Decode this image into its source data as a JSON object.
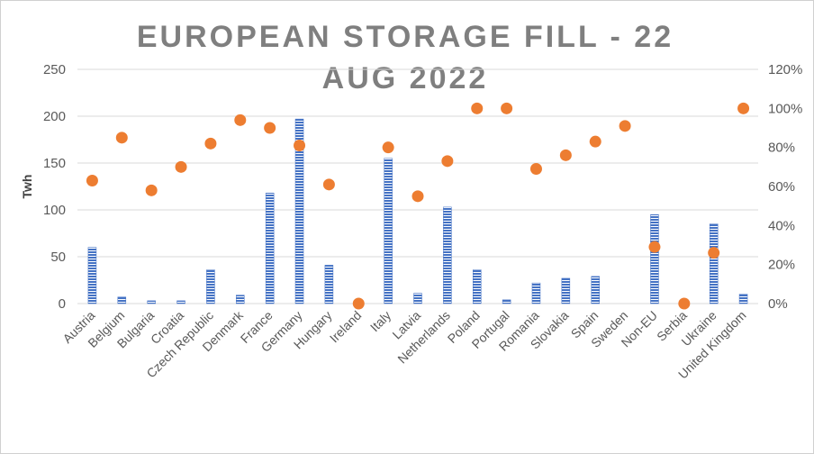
{
  "chart_data": {
    "type": "bar",
    "title": "EUROPEAN STORAGE FILL - 22 AUG 2022",
    "ylabel": "Twh",
    "y2label": "",
    "ylim": [
      0,
      250
    ],
    "y2lim": [
      0,
      1.2
    ],
    "yticks": [
      "0",
      "50",
      "100",
      "150",
      "200",
      "250"
    ],
    "y2ticks": [
      "0%",
      "20%",
      "40%",
      "60%",
      "80%",
      "100%",
      "120%"
    ],
    "grid": true,
    "legend": "none",
    "categories": [
      "Austria",
      "Belgium",
      "Bulgaria",
      "Croatia",
      "Czech Republic",
      "Denmark",
      "France",
      "Germany",
      "Hungary",
      "Ireland",
      "Italy",
      "Latvia",
      "Netherlands",
      "Poland",
      "Portugal",
      "Romania",
      "Slovakia",
      "Spain",
      "Sweden",
      "Non-EU",
      "Serbia",
      "Ukraine",
      "United Kingdom"
    ],
    "series": [
      {
        "kind": "bar",
        "axis": "left",
        "color": "#4472c4",
        "values": [
          60,
          7,
          3,
          3,
          36,
          9,
          118,
          197,
          41,
          0,
          155,
          11,
          103,
          36,
          4,
          22,
          27,
          29,
          0,
          95,
          0,
          85,
          10
        ]
      },
      {
        "kind": "scatter",
        "axis": "right",
        "color": "#ed7d31",
        "values": [
          0.63,
          0.85,
          0.58,
          0.7,
          0.82,
          0.94,
          0.9,
          0.81,
          0.61,
          0.0,
          0.8,
          0.55,
          0.73,
          1.0,
          1.0,
          0.69,
          0.76,
          0.83,
          0.91,
          0.29,
          0.0,
          0.26,
          1.0
        ]
      }
    ]
  }
}
